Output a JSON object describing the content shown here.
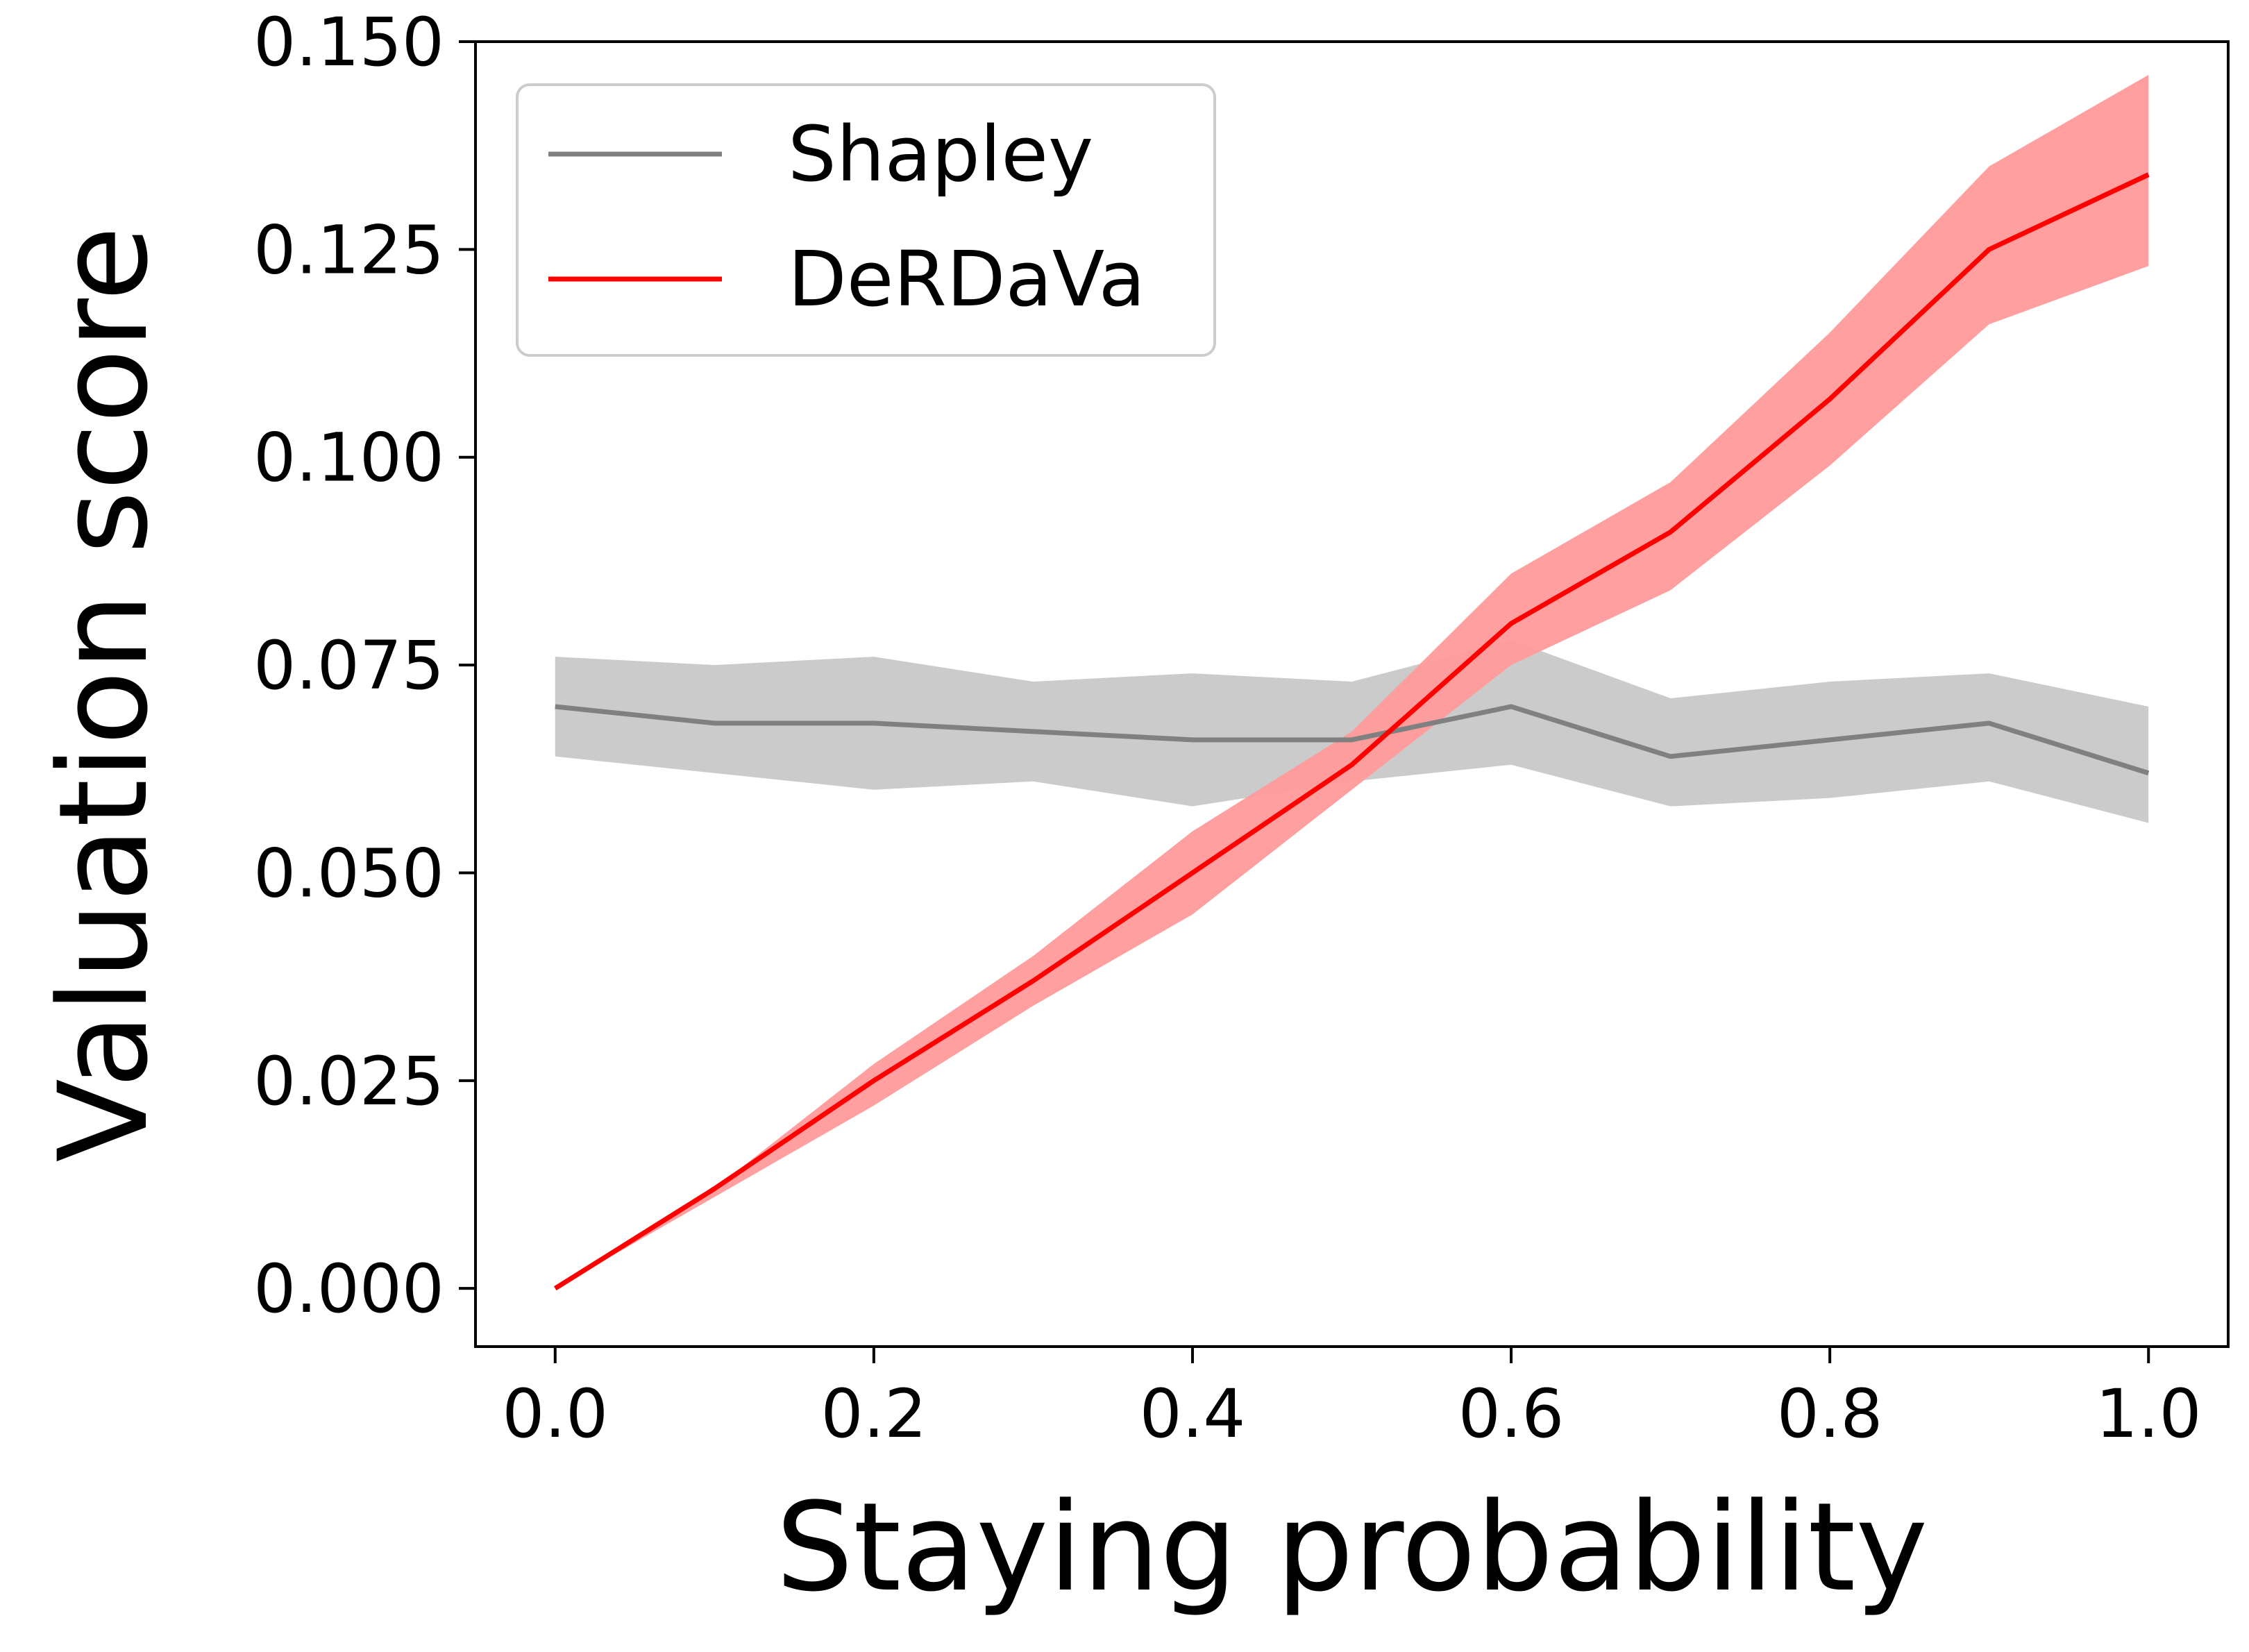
{
  "chart_data": {
    "type": "line",
    "title": "",
    "xlabel": "Staying probability",
    "ylabel": "Valuation score",
    "xlim": [
      -0.05,
      1.05
    ],
    "ylim": [
      -0.007,
      0.15
    ],
    "xticks": [
      "0.0",
      "0.2",
      "0.4",
      "0.6",
      "0.8",
      "1.0"
    ],
    "xtick_values": [
      0.0,
      0.2,
      0.4,
      0.6,
      0.8,
      1.0
    ],
    "yticks": [
      "0.000",
      "0.025",
      "0.050",
      "0.075",
      "0.100",
      "0.125",
      "0.150"
    ],
    "ytick_values": [
      0.0,
      0.025,
      0.05,
      0.075,
      0.1,
      0.125,
      0.15
    ],
    "grid": false,
    "legend_position": "top-left",
    "x": [
      0.0,
      0.1,
      0.2,
      0.3,
      0.4,
      0.5,
      0.6,
      0.7,
      0.8,
      0.9,
      1.0
    ],
    "series": [
      {
        "name": "Shapley",
        "color": "#808080",
        "band_color": "#c8c8c8",
        "values": [
          0.07,
          0.068,
          0.068,
          0.067,
          0.066,
          0.066,
          0.07,
          0.064,
          0.066,
          0.068,
          0.062
        ],
        "lower": [
          0.064,
          0.062,
          0.06,
          0.061,
          0.058,
          0.061,
          0.063,
          0.058,
          0.059,
          0.061,
          0.056
        ],
        "upper": [
          0.076,
          0.075,
          0.076,
          0.073,
          0.074,
          0.073,
          0.078,
          0.071,
          0.073,
          0.074,
          0.07
        ]
      },
      {
        "name": "DeRDaVa",
        "color": "#ff0000",
        "band_color": "#ff9a9a",
        "values": [
          0.0,
          0.012,
          0.025,
          0.037,
          0.05,
          0.063,
          0.08,
          0.091,
          0.107,
          0.125,
          0.134
        ],
        "lower": [
          0.0,
          0.011,
          0.022,
          0.034,
          0.045,
          0.06,
          0.075,
          0.084,
          0.099,
          0.116,
          0.123
        ],
        "upper": [
          0.0,
          0.012,
          0.027,
          0.04,
          0.055,
          0.067,
          0.086,
          0.097,
          0.115,
          0.135,
          0.146
        ]
      }
    ]
  }
}
